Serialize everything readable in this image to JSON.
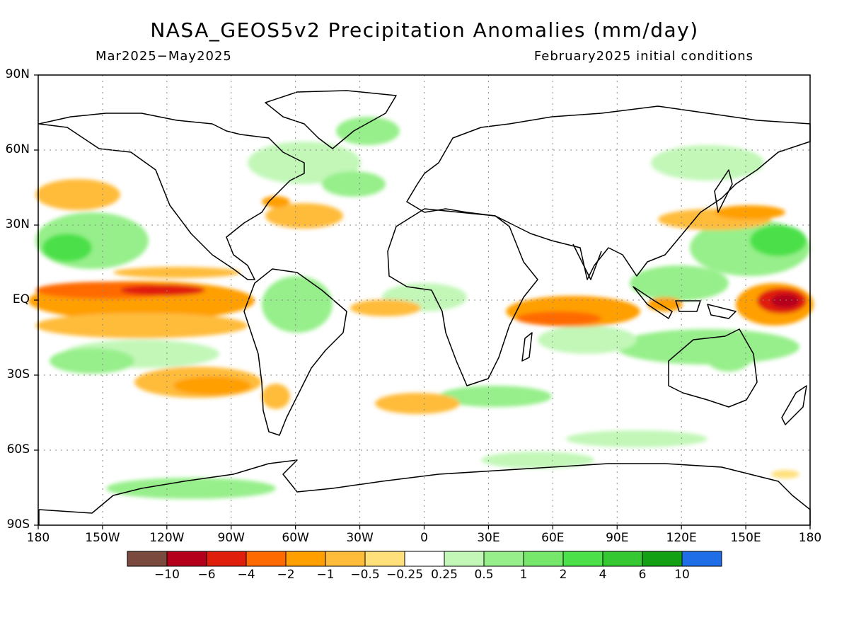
{
  "title": "NASA_GEOS5v2 Precipitation Anomalies (mm/day)",
  "period": "Mar2025−May2025",
  "init": "February2025 initial conditions",
  "lat_labels": [
    "90N",
    "60N",
    "30N",
    "EQ",
    "30S",
    "60S",
    "90S"
  ],
  "lon_labels": [
    "180",
    "150W",
    "120W",
    "90W",
    "60W",
    "30W",
    "0",
    "30E",
    "60E",
    "90E",
    "120E",
    "150E",
    "180"
  ],
  "colorbar": {
    "labels": [
      "−10",
      "−6",
      "−4",
      "−2",
      "−1",
      "−0.5",
      "−0.25",
      "0.25",
      "0.5",
      "1",
      "2",
      "4",
      "6",
      "10"
    ],
    "colors": [
      "#7a4a3e",
      "#b5001b",
      "#e01e0c",
      "#ff6a00",
      "#ff9f00",
      "#ffbc3a",
      "#ffe07a",
      "#ffffff",
      "#c2f7b8",
      "#96ef8a",
      "#76e76a",
      "#4ce04a",
      "#35c832",
      "#14a014",
      "#1f6ee8"
    ]
  }
}
